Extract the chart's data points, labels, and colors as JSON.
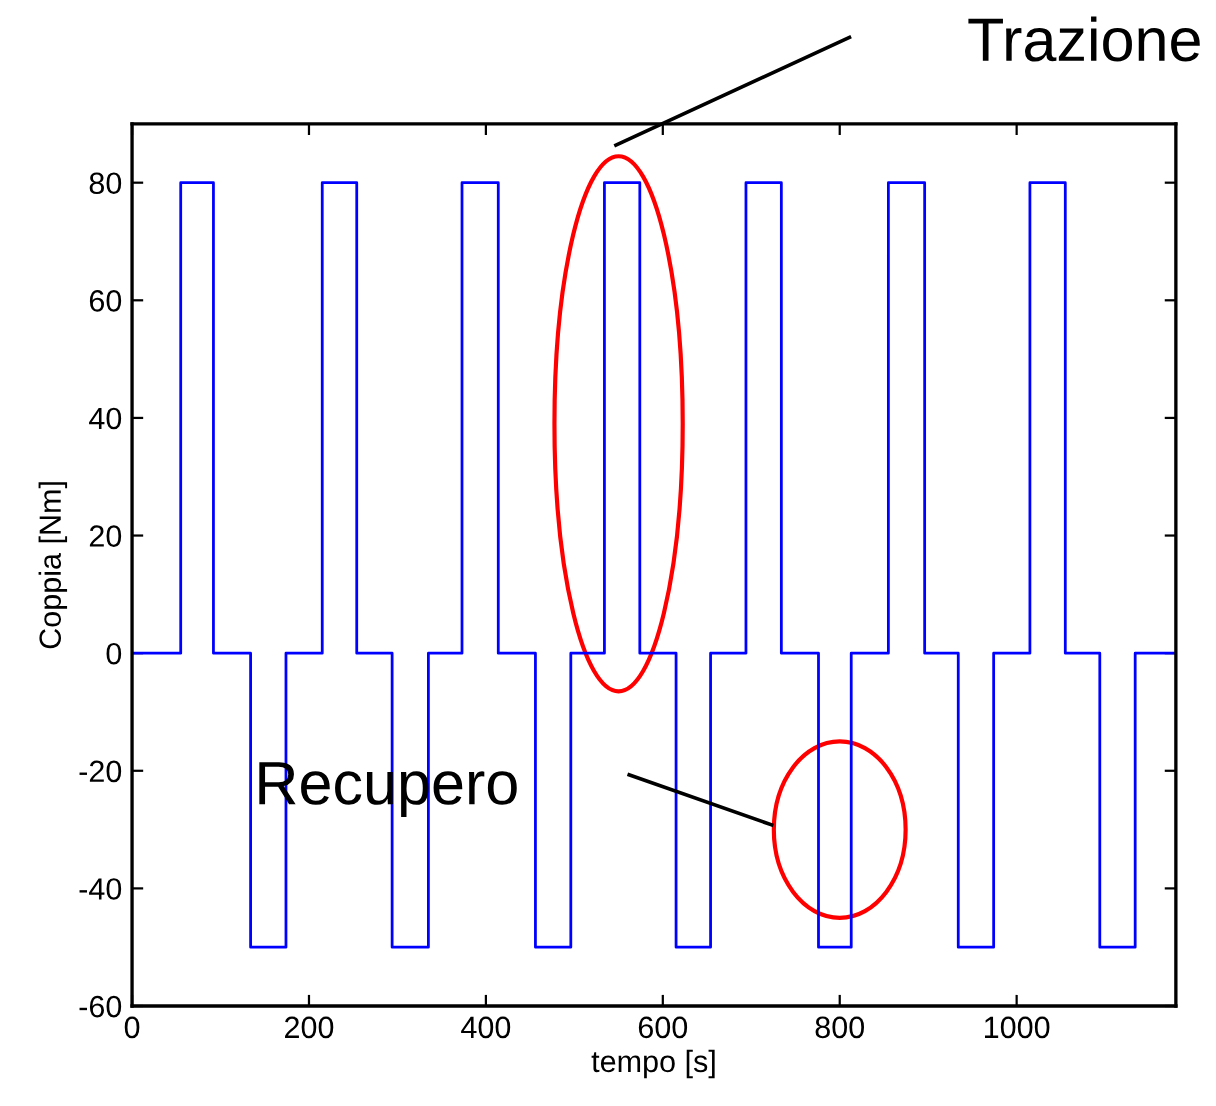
{
  "chart_data": {
    "type": "step",
    "xlabel": "tempo [s]",
    "ylabel": "Coppia [Nm]",
    "x": [
      0,
      55,
      92,
      134,
      174,
      215,
      254,
      294,
      335,
      373,
      414,
      456,
      496,
      534,
      574,
      615,
      654,
      694,
      734,
      776,
      813,
      855,
      896,
      934,
      974,
      1015,
      1055,
      1094,
      1134,
      1180
    ],
    "series": [
      {
        "color": "#0000ff",
        "values": [
          0,
          80,
          0,
          -50,
          0,
          80,
          0,
          -50,
          0,
          80,
          0,
          -50,
          0,
          80,
          0,
          -50,
          0,
          80,
          0,
          -50,
          0,
          80,
          0,
          -50,
          0,
          80,
          0,
          -50,
          0,
          0
        ]
      }
    ],
    "xlim": [
      0,
      1180
    ],
    "ylim": [
      -60,
      90
    ],
    "xticks": [
      0,
      200,
      400,
      600,
      800,
      1000
    ],
    "yticks": [
      -60,
      -40,
      -20,
      0,
      20,
      40,
      60,
      80
    ],
    "grid": false,
    "legend": false,
    "annotations": [
      "Trazione",
      "Recupero"
    ]
  }
}
